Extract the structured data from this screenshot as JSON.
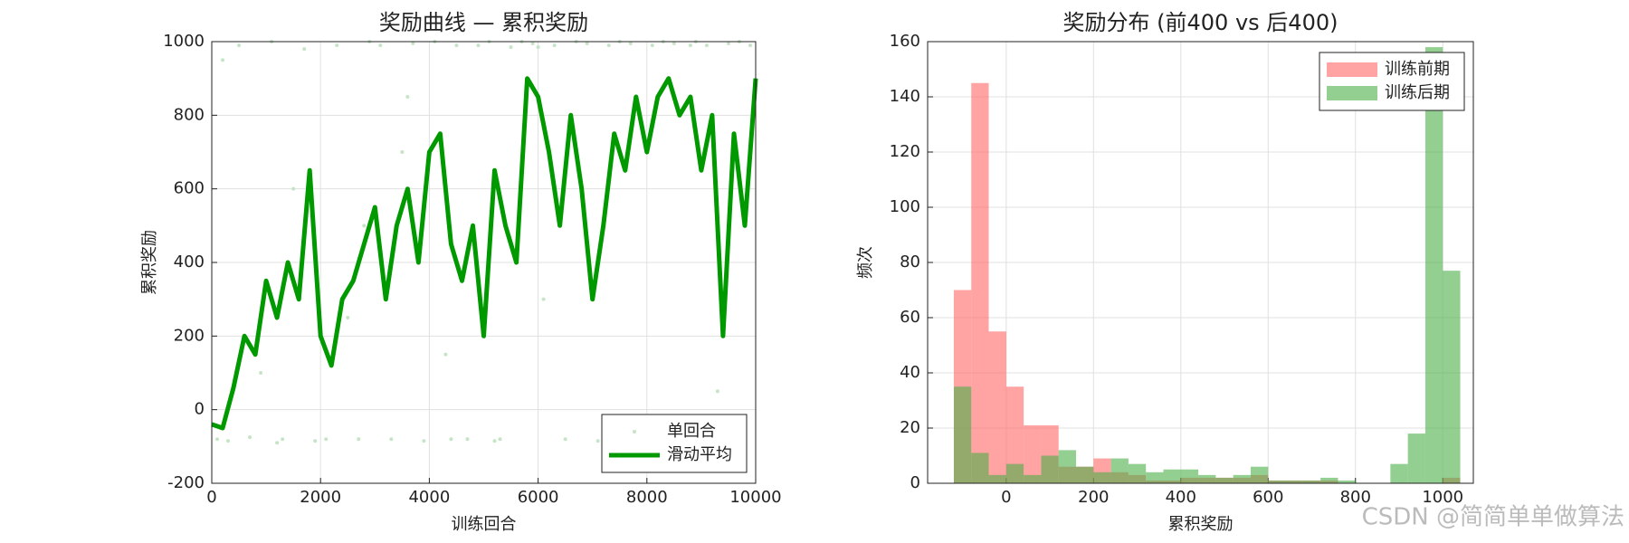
{
  "chart_data": [
    {
      "type": "line",
      "title": "奖励曲线 — 累积奖励",
      "xlabel": "训练回合",
      "ylabel": "累积奖励",
      "xlim": [
        0,
        10000
      ],
      "xticks": [
        0,
        2000,
        4000,
        6000,
        8000,
        10000
      ],
      "ylim": [
        -200,
        1000
      ],
      "yticks": [
        -200,
        0,
        200,
        400,
        600,
        800,
        1000
      ],
      "grid": true,
      "legend": "lower right",
      "series": [
        {
          "name": "单回合",
          "style": "scatter",
          "color": "#c6e5c6",
          "x": [
            100,
            300,
            500,
            700,
            900,
            1100,
            1300,
            1500,
            1700,
            1900,
            2100,
            2300,
            2500,
            2700,
            2900,
            3100,
            3300,
            3500,
            3700,
            3900,
            4100,
            4300,
            4500,
            4700,
            4900,
            5100,
            5300,
            5500,
            5700,
            5900,
            6100,
            6300,
            6500,
            6700,
            6900,
            7100,
            7300,
            7500,
            7700,
            7900,
            8100,
            8300,
            8500,
            8700,
            8900,
            9100,
            9300,
            9500,
            9700,
            9900,
            200,
            1200,
            2800,
            4400,
            6000,
            7600,
            8800,
            9600,
            3600,
            5200
          ],
          "values": [
            -80,
            -85,
            990,
            -75,
            100,
            1000,
            -80,
            600,
            980,
            -85,
            -80,
            990,
            250,
            -80,
            1000,
            990,
            -80,
            700,
            995,
            -85,
            1000,
            150,
            990,
            -80,
            990,
            1000,
            -80,
            985,
            1000,
            995,
            300,
            990,
            -80,
            1000,
            995,
            -85,
            990,
            1000,
            995,
            -80,
            990,
            1000,
            995,
            -80,
            1000,
            990,
            50,
            995,
            1000,
            990,
            950,
            -90,
            500,
            -80,
            985,
            -75,
            990,
            -80,
            850,
            -85
          ]
        },
        {
          "name": "滑动平均",
          "style": "line",
          "color": "#009900",
          "x": [
            0,
            200,
            400,
            600,
            800,
            1000,
            1200,
            1400,
            1600,
            1800,
            2000,
            2200,
            2400,
            2600,
            2800,
            3000,
            3200,
            3400,
            3600,
            3800,
            4000,
            4200,
            4400,
            4600,
            4800,
            5000,
            5200,
            5400,
            5600,
            5800,
            6000,
            6200,
            6400,
            6600,
            6800,
            7000,
            7200,
            7400,
            7600,
            7800,
            8000,
            8200,
            8400,
            8600,
            8800,
            9000,
            9200,
            9400,
            9600,
            9800,
            10000
          ],
          "values": [
            -40,
            -50,
            60,
            200,
            150,
            350,
            250,
            400,
            300,
            650,
            200,
            120,
            300,
            350,
            450,
            550,
            300,
            500,
            600,
            400,
            700,
            750,
            450,
            350,
            500,
            200,
            650,
            500,
            400,
            900,
            850,
            700,
            500,
            800,
            600,
            300,
            500,
            750,
            650,
            850,
            700,
            850,
            900,
            800,
            850,
            650,
            800,
            200,
            750,
            500,
            900
          ]
        }
      ]
    },
    {
      "type": "histogram",
      "title": "奖励分布 (前400 vs 后400)",
      "xlabel": "累积奖励",
      "ylabel": "频次",
      "xlim": [
        -180,
        1070
      ],
      "xticks": [
        0,
        200,
        400,
        600,
        800,
        1000
      ],
      "ylim": [
        0,
        160
      ],
      "yticks": [
        0,
        20,
        40,
        60,
        80,
        100,
        120,
        140,
        160
      ],
      "grid": true,
      "legend": "upper right",
      "bins": [
        -120,
        -80,
        -40,
        0,
        40,
        80,
        120,
        160,
        200,
        240,
        280,
        320,
        360,
        400,
        440,
        480,
        520,
        560,
        600,
        640,
        680,
        720,
        760,
        800,
        840,
        880,
        920,
        960,
        1000,
        1040
      ],
      "series": [
        {
          "name": "训练前期",
          "color": "#ff6666",
          "values": [
            70,
            145,
            55,
            35,
            21,
            21,
            6,
            6,
            9,
            4,
            3,
            1,
            1,
            2,
            2,
            2,
            2,
            3,
            1,
            1,
            1,
            1,
            0,
            0,
            0,
            0,
            0,
            0,
            2
          ]
        },
        {
          "name": "训练后期",
          "color": "#4daf4a",
          "values": [
            35,
            11,
            3,
            7,
            3,
            10,
            12,
            6,
            4,
            9,
            7,
            4,
            5,
            5,
            3,
            2,
            3,
            6,
            1,
            1,
            1,
            2,
            1,
            0,
            0,
            7,
            18,
            158,
            77
          ]
        }
      ]
    }
  ],
  "watermark": "CSDN @简简单单做算法"
}
